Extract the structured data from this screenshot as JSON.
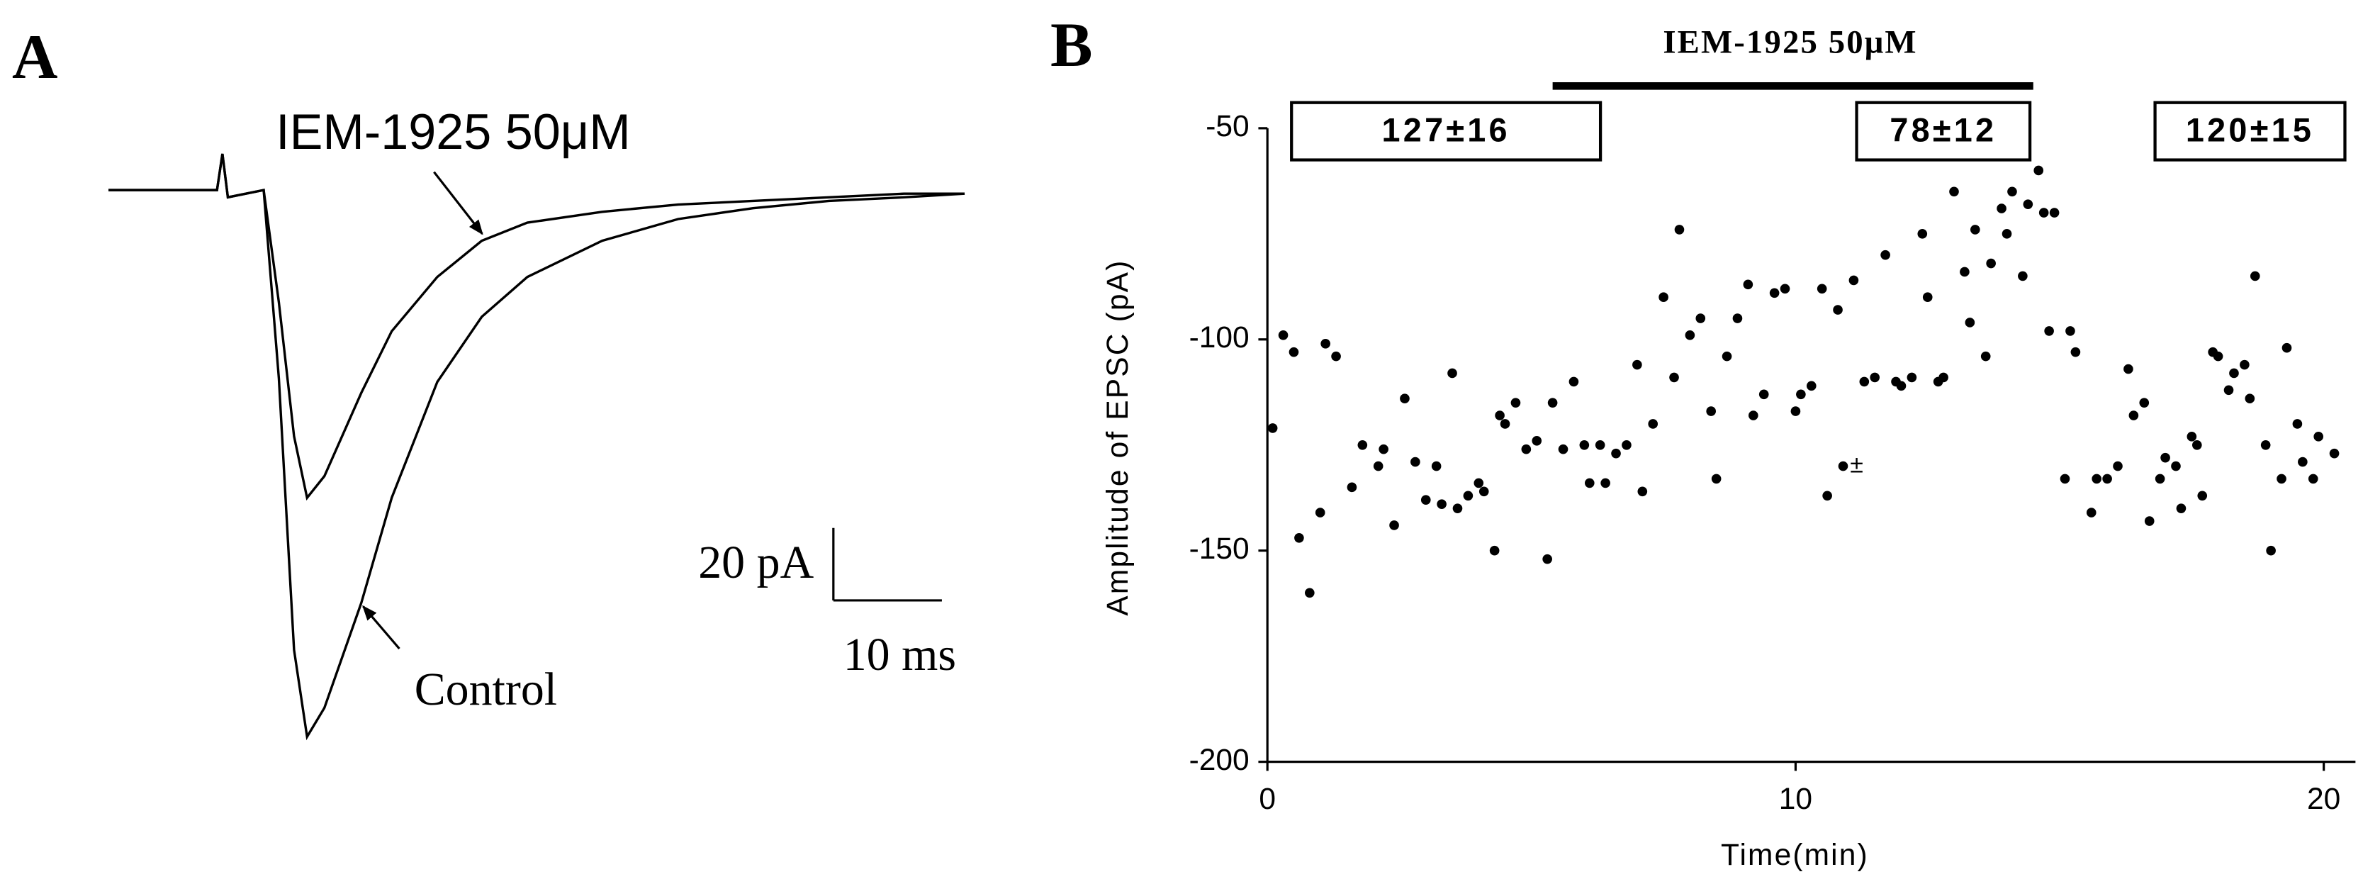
{
  "chart_data": [
    {
      "type": "line",
      "panel": "A",
      "x": [
        0,
        10,
        10.5,
        11,
        14.3,
        15.7,
        17.1,
        18.3,
        19.9,
        23.3,
        26.1,
        30.3,
        34.4,
        38.6,
        45.5,
        52.5,
        59.4,
        66.4,
        73.3,
        78.9
      ],
      "series": [
        {
          "name": "Control",
          "color": "#000000",
          "values": [
            0,
            0,
            10,
            -2,
            0,
            -52,
            -127,
            -151,
            -143,
            -114,
            -85,
            -53,
            -35,
            -24,
            -14,
            -8,
            -5,
            -3,
            -2,
            -1
          ]
        },
        {
          "name": "IEM-1925 50μM",
          "color": "#000000",
          "values": [
            0,
            0,
            10,
            -2,
            0,
            -31,
            -68,
            -85,
            -79,
            -56,
            -39,
            -24,
            -14,
            -9,
            -6,
            -4,
            -3,
            -2,
            -1,
            -1
          ]
        }
      ],
      "scale_bar": {
        "y_value": 20,
        "y_label": "20 pA",
        "x_value": 10,
        "x_label": "10 ms"
      }
    },
    {
      "type": "scatter",
      "panel": "B",
      "xlabel": "Time(min)",
      "ylabel": "Amplitude of EPSC (pA)",
      "xlim": [
        0,
        20.6
      ],
      "ylim": [
        -200,
        -50
      ],
      "xticks": [
        0,
        10,
        20
      ],
      "yticks": [
        -200,
        -150,
        -100,
        -50
      ],
      "color": "#000000",
      "drug_bar": {
        "label": "IEM-1925 50μM",
        "start": 5.4,
        "end": 14.5
      },
      "annotations": [
        "127±16",
        "78±12",
        "120±15",
        "±"
      ],
      "x": [
        0.1,
        0.3,
        0.5,
        0.6,
        0.8,
        1.0,
        1.1,
        1.3,
        1.6,
        1.8,
        2.1,
        2.2,
        2.4,
        2.6,
        2.8,
        3.0,
        3.2,
        3.3,
        3.5,
        3.6,
        3.8,
        4.0,
        4.1,
        4.3,
        4.4,
        4.5,
        4.7,
        4.9,
        5.1,
        5.3,
        5.4,
        5.6,
        5.8,
        6.0,
        6.1,
        6.3,
        6.4,
        6.6,
        6.8,
        7.0,
        7.1,
        7.3,
        7.5,
        7.7,
        7.8,
        8.0,
        8.2,
        8.4,
        8.5,
        8.7,
        8.9,
        9.1,
        9.2,
        9.4,
        9.6,
        9.8,
        10.0,
        10.1,
        10.3,
        10.5,
        10.6,
        10.8,
        10.9,
        11.1,
        11.3,
        11.5,
        11.7,
        11.9,
        12.0,
        12.2,
        12.4,
        12.5,
        12.7,
        12.8,
        13.0,
        13.2,
        13.3,
        13.4,
        13.6,
        13.7,
        13.9,
        14.0,
        14.1,
        14.3,
        14.4,
        14.6,
        14.7,
        14.8,
        14.9,
        15.1,
        15.2,
        15.3,
        15.6,
        15.7,
        15.9,
        16.1,
        16.3,
        16.4,
        16.6,
        16.7,
        16.9,
        17.0,
        17.2,
        17.3,
        17.5,
        17.6,
        17.7,
        17.9,
        18.0,
        18.2,
        18.3,
        18.5,
        18.6,
        18.7,
        18.9,
        19.0,
        19.2,
        19.3,
        19.5,
        19.6,
        19.8,
        19.9,
        20.2
      ],
      "values": [
        -121,
        -99,
        -103,
        -147,
        -160,
        -141,
        -101,
        -104,
        -135,
        -125,
        -130,
        -126,
        -144,
        -114,
        -129,
        -138,
        -130,
        -139,
        -108,
        -140,
        -137,
        -134,
        -136,
        -150,
        -118,
        -120,
        -115,
        -126,
        -124,
        -152,
        -115,
        -126,
        -110,
        -125,
        -134,
        -125,
        -134,
        -127,
        -125,
        -106,
        -136,
        -120,
        -90,
        -109,
        -74,
        -99,
        -95,
        -117,
        -133,
        -104,
        -95,
        -87,
        -118,
        -113,
        -89,
        -88,
        -117,
        -113,
        -111,
        -88,
        -137,
        -93,
        -130,
        -86,
        -110,
        -109,
        -80,
        -110,
        -111,
        -109,
        -75,
        -90,
        -110,
        -109,
        -65,
        -84,
        -96,
        -74,
        -104,
        -82,
        -69,
        -75,
        -65,
        -85,
        -68,
        -60,
        -70,
        -98,
        -70,
        -133,
        -98,
        -103,
        -141,
        -133,
        -133,
        -130,
        -107,
        -118,
        -115,
        -143,
        -133,
        -128,
        -130,
        -140,
        -123,
        -125,
        -137,
        -103,
        -104,
        -112,
        -108,
        -106,
        -114,
        -85,
        -125,
        -150,
        -133,
        -102,
        -120,
        -129,
        -133,
        -123,
        -127
      ]
    }
  ]
}
